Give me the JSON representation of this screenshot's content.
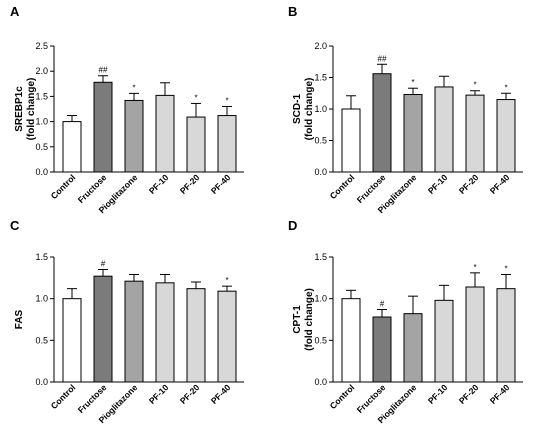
{
  "colors": {
    "Control": "#ffffff",
    "Fructose": "#7b7b7b",
    "Pioglitazone": "#a4a4a4",
    "PF-10": "#d8d8d8",
    "PF-20": "#d8d8d8",
    "PF-40": "#d8d8d8",
    "stroke": "#000000"
  },
  "chart_data": [
    {
      "panel": "A",
      "type": "bar",
      "title": "",
      "ylabel": [
        "SREBP1c",
        "(fold change)"
      ],
      "categories": [
        "Control",
        "Fructose",
        "Pioglitazone",
        "PF-10",
        "PF-20",
        "PF-40"
      ],
      "values": [
        1.0,
        1.78,
        1.42,
        1.52,
        1.09,
        1.12
      ],
      "errors": [
        0.12,
        0.13,
        0.14,
        0.25,
        0.27,
        0.18
      ],
      "significance": [
        "",
        "##",
        "*",
        "",
        "*",
        "*"
      ],
      "ylim": [
        0,
        2.5
      ],
      "yticks": [
        "0.0",
        "0.5",
        "1.0",
        "1.5",
        "2.0",
        "2.5"
      ],
      "grid": false
    },
    {
      "panel": "B",
      "type": "bar",
      "title": "",
      "ylabel": [
        "SCD-1",
        "(fold change)"
      ],
      "categories": [
        "Control",
        "Fructose",
        "Pioglitazone",
        "PF-10",
        "PF-20",
        "PF-40"
      ],
      "values": [
        1.0,
        1.56,
        1.23,
        1.35,
        1.22,
        1.15
      ],
      "errors": [
        0.21,
        0.15,
        0.1,
        0.17,
        0.07,
        0.1
      ],
      "significance": [
        "",
        "##",
        "*",
        "",
        "*",
        "*"
      ],
      "ylim": [
        0,
        2.0
      ],
      "yticks": [
        "0.0",
        "0.5",
        "1.0",
        "1.5",
        "2.0"
      ],
      "grid": false
    },
    {
      "panel": "C",
      "type": "bar",
      "title": "",
      "ylabel": [
        "FAS"
      ],
      "categories": [
        "Control",
        "Fructose",
        "Pioglitazone",
        "PF-10",
        "PF-20",
        "PF-40"
      ],
      "values": [
        1.0,
        1.27,
        1.21,
        1.19,
        1.12,
        1.09
      ],
      "errors": [
        0.12,
        0.08,
        0.08,
        0.1,
        0.08,
        0.06
      ],
      "significance": [
        "",
        "#",
        "",
        "",
        "",
        "*"
      ],
      "ylim": [
        0,
        1.5
      ],
      "yticks": [
        "0.0",
        "0.5",
        "1.0",
        "1.5"
      ],
      "grid": false
    },
    {
      "panel": "D",
      "type": "bar",
      "title": "",
      "ylabel": [
        "CPT-1",
        "(fold change)"
      ],
      "categories": [
        "Control",
        "Fructose",
        "Pioglitazone",
        "PF-10",
        "PF-20",
        "PF-40"
      ],
      "values": [
        1.0,
        0.78,
        0.82,
        0.98,
        1.14,
        1.12
      ],
      "errors": [
        0.1,
        0.09,
        0.21,
        0.18,
        0.17,
        0.17
      ],
      "significance": [
        "",
        "#",
        "",
        "",
        "*",
        "*"
      ],
      "ylim": [
        0,
        1.5
      ],
      "yticks": [
        "0.0",
        "0.5",
        "1.0",
        "1.5"
      ],
      "grid": false
    }
  ]
}
